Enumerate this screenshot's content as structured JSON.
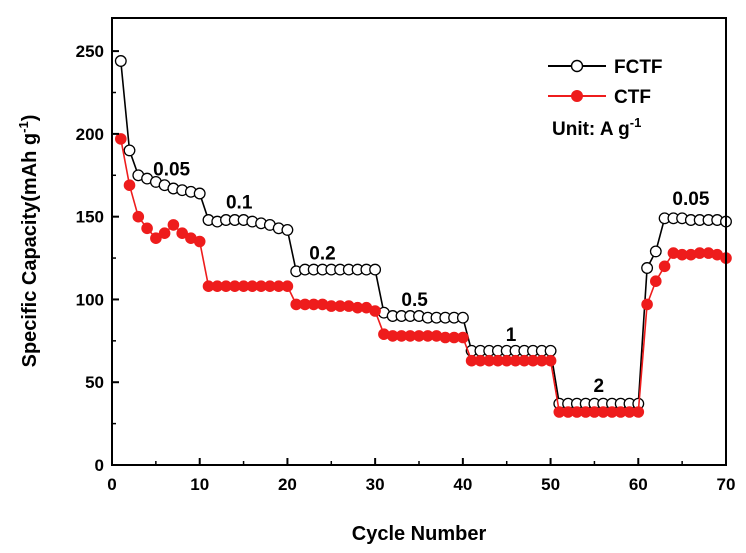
{
  "chart_data": {
    "type": "scatter",
    "xlabel": "Cycle Number",
    "ylabel": "Specific Capacity(mAh g",
    "ylabel_sup": "-1",
    "ylabel_close": ")",
    "xlim": [
      0,
      70
    ],
    "ylim": [
      0,
      270
    ],
    "xticks": [
      "0",
      "10",
      "20",
      "30",
      "40",
      "50",
      "60",
      "70"
    ],
    "yticks": [
      "0",
      "50",
      "100",
      "150",
      "200",
      "250"
    ],
    "grid": false,
    "legend_position": "top-right",
    "unit_label": "Unit: A g",
    "unit_sup": "-1",
    "annotations": [
      {
        "text": "0.05",
        "x": 6.8,
        "y": 175
      },
      {
        "text": "0.1",
        "x": 14.5,
        "y": 155
      },
      {
        "text": "0.2",
        "x": 24.0,
        "y": 124
      },
      {
        "text": "0.5",
        "x": 34.5,
        "y": 96
      },
      {
        "text": "1",
        "x": 45.5,
        "y": 75
      },
      {
        "text": "2",
        "x": 55.5,
        "y": 44
      },
      {
        "text": "0.05",
        "x": 66.0,
        "y": 157
      }
    ],
    "series": [
      {
        "name": "FCTF",
        "color": "#000000",
        "marker": "open-circle",
        "x": [
          1,
          2,
          3,
          4,
          5,
          6,
          7,
          8,
          9,
          10,
          11,
          12,
          13,
          14,
          15,
          16,
          17,
          18,
          19,
          20,
          21,
          22,
          23,
          24,
          25,
          26,
          27,
          28,
          29,
          30,
          31,
          32,
          33,
          34,
          35,
          36,
          37,
          38,
          39,
          40,
          41,
          42,
          43,
          44,
          45,
          46,
          47,
          48,
          49,
          50,
          51,
          52,
          53,
          54,
          55,
          56,
          57,
          58,
          59,
          60,
          61,
          62,
          63,
          64,
          65,
          66,
          67,
          68,
          69,
          70
        ],
        "y": [
          244,
          190,
          175,
          173,
          171,
          169,
          167,
          166,
          165,
          164,
          148,
          147,
          148,
          148,
          148,
          147,
          146,
          145,
          143,
          142,
          117,
          118,
          118,
          118,
          118,
          118,
          118,
          118,
          118,
          118,
          92,
          90,
          90,
          90,
          90,
          89,
          89,
          89,
          89,
          89,
          69,
          69,
          69,
          69,
          69,
          69,
          69,
          69,
          69,
          69,
          37,
          37,
          37,
          37,
          37,
          37,
          37,
          37,
          37,
          37,
          119,
          129,
          149,
          149,
          149,
          148,
          148,
          148,
          148,
          147
        ]
      },
      {
        "name": "CTF",
        "color": "#ee1c1c",
        "marker": "filled-circle",
        "x": [
          1,
          2,
          3,
          4,
          5,
          6,
          7,
          8,
          9,
          10,
          11,
          12,
          13,
          14,
          15,
          16,
          17,
          18,
          19,
          20,
          21,
          22,
          23,
          24,
          25,
          26,
          27,
          28,
          29,
          30,
          31,
          32,
          33,
          34,
          35,
          36,
          37,
          38,
          39,
          40,
          41,
          42,
          43,
          44,
          45,
          46,
          47,
          48,
          49,
          50,
          51,
          52,
          53,
          54,
          55,
          56,
          57,
          58,
          59,
          60,
          61,
          62,
          63,
          64,
          65,
          66,
          67,
          68,
          69,
          70
        ],
        "y": [
          197,
          169,
          150,
          143,
          137,
          140,
          145,
          140,
          137,
          135,
          108,
          108,
          108,
          108,
          108,
          108,
          108,
          108,
          108,
          108,
          97,
          97,
          97,
          97,
          96,
          96,
          96,
          95,
          95,
          93,
          79,
          78,
          78,
          78,
          78,
          78,
          78,
          77,
          77,
          77,
          63,
          63,
          63,
          63,
          63,
          63,
          63,
          63,
          63,
          63,
          32,
          32,
          32,
          32,
          32,
          32,
          32,
          32,
          32,
          32,
          97,
          111,
          120,
          128,
          127,
          127,
          128,
          128,
          127,
          125
        ]
      }
    ]
  }
}
